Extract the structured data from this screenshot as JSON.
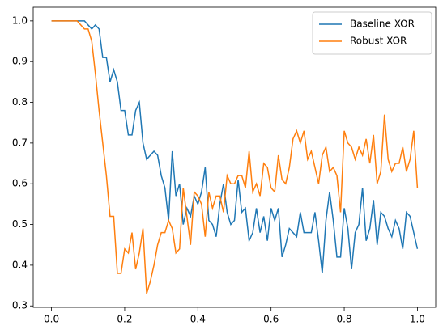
{
  "chart_data": {
    "type": "line",
    "x": [
      0,
      0.01,
      0.02,
      0.03,
      0.04,
      0.05,
      0.06,
      0.07,
      0.08,
      0.09,
      0.1,
      0.11,
      0.12,
      0.13,
      0.14,
      0.15,
      0.16,
      0.17,
      0.18,
      0.19,
      0.2,
      0.21,
      0.22,
      0.23,
      0.24,
      0.25,
      0.26,
      0.27,
      0.28,
      0.29,
      0.3,
      0.31,
      0.32,
      0.33,
      0.34,
      0.35,
      0.36,
      0.37,
      0.38,
      0.39,
      0.4,
      0.41,
      0.42,
      0.43,
      0.44,
      0.45,
      0.46,
      0.47,
      0.48,
      0.49,
      0.5,
      0.51,
      0.52,
      0.53,
      0.54,
      0.55,
      0.56,
      0.57,
      0.58,
      0.59,
      0.6,
      0.61,
      0.62,
      0.63,
      0.64,
      0.65,
      0.66,
      0.67,
      0.68,
      0.69,
      0.7,
      0.71,
      0.72,
      0.73,
      0.74,
      0.75,
      0.76,
      0.77,
      0.78,
      0.79,
      0.8,
      0.81,
      0.82,
      0.83,
      0.84,
      0.85,
      0.86,
      0.87,
      0.88,
      0.89,
      0.9,
      0.91,
      0.92,
      0.93,
      0.94,
      0.95,
      0.96,
      0.97,
      0.98,
      0.99,
      1
    ],
    "series": [
      {
        "name": "Baseline XOR",
        "color": "#1f77b4",
        "values": [
          1,
          1,
          1,
          1,
          1,
          1,
          1,
          1,
          1,
          1,
          0.99,
          0.98,
          0.99,
          0.98,
          0.91,
          0.91,
          0.85,
          0.88,
          0.85,
          0.78,
          0.78,
          0.72,
          0.72,
          0.78,
          0.8,
          0.7,
          0.66,
          0.67,
          0.68,
          0.67,
          0.62,
          0.59,
          0.51,
          0.68,
          0.57,
          0.6,
          0.5,
          0.54,
          0.52,
          0.57,
          0.55,
          0.58,
          0.64,
          0.51,
          0.5,
          0.47,
          0.55,
          0.6,
          0.53,
          0.5,
          0.51,
          0.61,
          0.53,
          0.54,
          0.46,
          0.48,
          0.54,
          0.48,
          0.52,
          0.46,
          0.54,
          0.51,
          0.54,
          0.42,
          0.45,
          0.49,
          0.48,
          0.47,
          0.53,
          0.48,
          0.48,
          0.48,
          0.53,
          0.46,
          0.38,
          0.51,
          0.58,
          0.51,
          0.42,
          0.42,
          0.54,
          0.49,
          0.39,
          0.48,
          0.5,
          0.59,
          0.46,
          0.49,
          0.56,
          0.45,
          0.53,
          0.52,
          0.49,
          0.47,
          0.51,
          0.49,
          0.44,
          0.53,
          0.52,
          0.48,
          0.44
        ]
      },
      {
        "name": "Robust XOR",
        "color": "#ff7f0e",
        "values": [
          1,
          1,
          1,
          1,
          1,
          1,
          1,
          1,
          0.99,
          0.98,
          0.98,
          0.95,
          0.87,
          0.78,
          0.7,
          0.62,
          0.52,
          0.52,
          0.38,
          0.38,
          0.44,
          0.43,
          0.48,
          0.39,
          0.43,
          0.49,
          0.33,
          0.36,
          0.4,
          0.45,
          0.48,
          0.48,
          0.51,
          0.49,
          0.43,
          0.44,
          0.59,
          0.52,
          0.45,
          0.58,
          0.57,
          0.55,
          0.47,
          0.58,
          0.54,
          0.57,
          0.57,
          0.53,
          0.62,
          0.6,
          0.6,
          0.62,
          0.62,
          0.59,
          0.68,
          0.58,
          0.6,
          0.57,
          0.65,
          0.64,
          0.59,
          0.58,
          0.67,
          0.61,
          0.6,
          0.64,
          0.71,
          0.73,
          0.7,
          0.73,
          0.66,
          0.68,
          0.64,
          0.6,
          0.67,
          0.69,
          0.63,
          0.64,
          0.62,
          0.53,
          0.73,
          0.7,
          0.69,
          0.66,
          0.69,
          0.67,
          0.71,
          0.65,
          0.72,
          0.6,
          0.63,
          0.77,
          0.66,
          0.63,
          0.65,
          0.65,
          0.69,
          0.63,
          0.66,
          0.73,
          0.59
        ]
      }
    ],
    "xlim": [
      -0.05,
      1.05
    ],
    "ylim": [
      0.2965,
      1.0335
    ],
    "xticks": [
      {
        "value": 0,
        "label": "0.0"
      },
      0.2,
      0.4,
      0.6,
      0.8,
      {
        "value": 1,
        "label": "1.0"
      }
    ],
    "yticks": [
      0.3,
      0.4,
      0.5,
      0.6,
      0.7,
      0.8,
      0.9,
      {
        "value": 1,
        "label": "1.0"
      }
    ],
    "legend": "upper right"
  }
}
